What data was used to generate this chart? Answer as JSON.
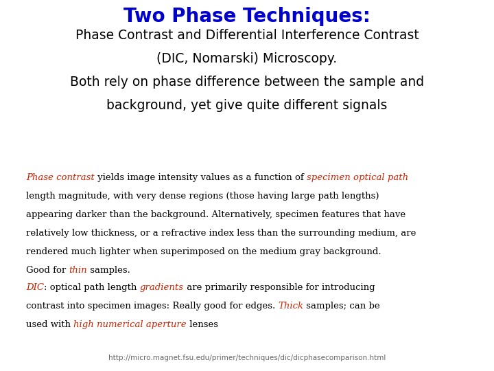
{
  "title": "Two Phase Techniques:",
  "title_color": "#0000CC",
  "title_fontsize": 20,
  "subtitle_lines": [
    "Phase Contrast and Differential Interference Contrast",
    "(DIC, Nomarski) Microscopy.",
    "Both rely on phase difference between the sample and",
    "background, yet give quite different signals"
  ],
  "subtitle_color": "#000000",
  "subtitle_fontsize": 13.5,
  "para1_segments": [
    [
      {
        "text": "Phase contrast",
        "color": "#CC2200",
        "style": "italic"
      },
      {
        "text": " yields image intensity values as a function of ",
        "color": "#000000",
        "style": "normal"
      },
      {
        "text": "specimen optical path",
        "color": "#CC2200",
        "style": "italic"
      }
    ],
    [
      {
        "text": "length magnitude, with very dense regions (those having large path lengths)",
        "color": "#000000",
        "style": "normal"
      }
    ],
    [
      {
        "text": "appearing darker than the background. Alternatively, specimen features that have",
        "color": "#000000",
        "style": "normal"
      }
    ],
    [
      {
        "text": "relatively low thickness, or a refractive index less than the surrounding medium, are",
        "color": "#000000",
        "style": "normal"
      }
    ],
    [
      {
        "text": "rendered much lighter when superimposed on the medium gray background.",
        "color": "#000000",
        "style": "normal"
      }
    ],
    [
      {
        "text": "Good for ",
        "color": "#000000",
        "style": "normal"
      },
      {
        "text": "thin",
        "color": "#CC2200",
        "style": "italic"
      },
      {
        "text": " samples.",
        "color": "#000000",
        "style": "normal"
      }
    ]
  ],
  "para2_segments": [
    [
      {
        "text": "DIC",
        "color": "#CC2200",
        "style": "italic"
      },
      {
        "text": ": optical path length ",
        "color": "#000000",
        "style": "normal"
      },
      {
        "text": "gradients",
        "color": "#CC2200",
        "style": "italic"
      },
      {
        "text": " are primarily responsible for introducing",
        "color": "#000000",
        "style": "normal"
      }
    ],
    [
      {
        "text": "contrast into specimen images: Really good for edges. ",
        "color": "#000000",
        "style": "normal"
      },
      {
        "text": "Thick",
        "color": "#CC2200",
        "style": "italic"
      },
      {
        "text": " samples; can be",
        "color": "#000000",
        "style": "normal"
      }
    ],
    [
      {
        "text": "used with ",
        "color": "#000000",
        "style": "normal"
      },
      {
        "text": "high numerical aperture",
        "color": "#CC2200",
        "style": "italic"
      },
      {
        "text": " lenses",
        "color": "#000000",
        "style": "normal"
      }
    ]
  ],
  "url": "http://micro.magnet.fsu.edu/primer/techniques/dic/dicphasecomparison.html",
  "url_color": "#666666",
  "url_fontsize": 7.5,
  "body_fontsize": 9.5,
  "body_font": "DejaVu Serif",
  "background_color": "#FFFFFF"
}
